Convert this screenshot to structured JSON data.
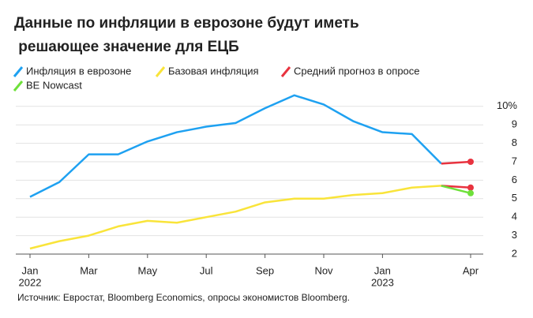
{
  "chart_data": {
    "type": "line",
    "title": "Данные по инфляции в еврозоне будут иметь решающее значение для ЕЦБ",
    "categories": [
      "Jan",
      null,
      "Mar",
      null,
      "May",
      null,
      "Jul",
      null,
      "Sep",
      null,
      "Nov",
      null,
      "Jan",
      null,
      null,
      "Apr"
    ],
    "x_sublabels": [
      "2022",
      null,
      null,
      null,
      null,
      null,
      null,
      null,
      null,
      null,
      null,
      null,
      "2023",
      null,
      null,
      null
    ],
    "series": [
      {
        "name": "Инфляция в еврозоне",
        "color": "#1ea1f1",
        "values": [
          5.1,
          5.9,
          7.4,
          7.4,
          8.1,
          8.6,
          8.9,
          9.1,
          9.9,
          10.6,
          10.1,
          9.2,
          8.6,
          8.5,
          6.9,
          null
        ]
      },
      {
        "name": "Базовая инфляция",
        "color": "#f9e43a",
        "values": [
          2.3,
          2.7,
          3.0,
          3.5,
          3.8,
          3.7,
          4.0,
          4.3,
          4.8,
          5.0,
          5.0,
          5.2,
          5.3,
          5.6,
          5.7,
          null
        ]
      },
      {
        "name": "Средний прогноз в опросе",
        "color": "#e8333f",
        "values": [
          null,
          null,
          null,
          null,
          null,
          null,
          null,
          null,
          null,
          null,
          null,
          null,
          null,
          null,
          6.9,
          7.0
        ],
        "core_values": [
          null,
          null,
          null,
          null,
          null,
          null,
          null,
          null,
          null,
          null,
          null,
          null,
          null,
          null,
          5.7,
          5.6
        ]
      },
      {
        "name": "BE Nowcast",
        "color": "#6ee03a",
        "values": [
          null,
          null,
          null,
          null,
          null,
          null,
          null,
          null,
          null,
          null,
          null,
          null,
          null,
          null,
          5.7,
          5.3
        ]
      }
    ],
    "ylim": [
      2,
      11
    ],
    "yticks": [
      2,
      3,
      4,
      5,
      6,
      7,
      8,
      9,
      {
        "value": 10,
        "label": "10%"
      }
    ],
    "grid": true,
    "source": "Источник: Евростат, Bloomberg Economics, опросы экономистов Bloomberg."
  }
}
